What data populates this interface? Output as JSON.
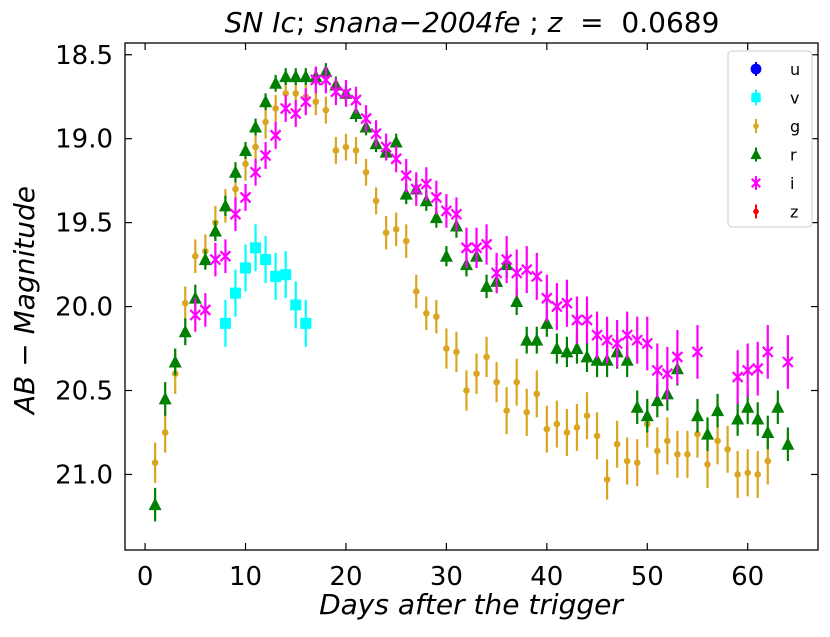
{
  "chart_data": {
    "type": "scatter",
    "title": "SN Ic; snana−2004fe ; z  =  0.0689",
    "title_parts": {
      "class": "SN Ic",
      "sep1": "; ",
      "name": "snana−2004fe",
      "sep2": " ; ",
      "zlabel": "z",
      "eq": "  =  ",
      "zvalue": "0.0689"
    },
    "xlabel": "Days after the trigger",
    "ylabel": "AB − Magnitude",
    "xlim": [
      -2,
      67
    ],
    "ylim": [
      21.45,
      18.43
    ],
    "y_inverted": true,
    "xticks": [
      0,
      10,
      20,
      30,
      40,
      50,
      60
    ],
    "xtick_labels": [
      "0",
      "10",
      "20",
      "30",
      "40",
      "50",
      "60"
    ],
    "yticks": [
      18.5,
      19.0,
      19.5,
      20.0,
      20.5,
      21.0
    ],
    "ytick_labels": [
      "18.5",
      "19.0",
      "19.5",
      "20.0",
      "20.5",
      "21.0"
    ],
    "legend_position": "top-right",
    "series": [
      {
        "name": "u",
        "color": "#0000ff",
        "marker": "circle",
        "x": [],
        "y": [],
        "err": []
      },
      {
        "name": "v",
        "color": "#00ffff",
        "marker": "square",
        "x": [
          8,
          9,
          10,
          11,
          12,
          13,
          14,
          15,
          16
        ],
        "y": [
          20.1,
          19.92,
          19.77,
          19.65,
          19.72,
          19.82,
          19.81,
          19.99,
          20.1
        ],
        "err": [
          0.14,
          0.14,
          0.14,
          0.14,
          0.14,
          0.14,
          0.14,
          0.14,
          0.14
        ]
      },
      {
        "name": "g",
        "color": "#daa520",
        "marker": "dot",
        "x": [
          1,
          2,
          3,
          4,
          5,
          6,
          7,
          8,
          9,
          10,
          11,
          12,
          13,
          14,
          15,
          16,
          17,
          18,
          19,
          20,
          21,
          22,
          23,
          24,
          25,
          26,
          27,
          28,
          29,
          30,
          31,
          32,
          33,
          34,
          35,
          36,
          37,
          38,
          39,
          40,
          41,
          42,
          43,
          44,
          45,
          46,
          47,
          48,
          49,
          50,
          51,
          52,
          53,
          54,
          55,
          56,
          57,
          58,
          59,
          60,
          61,
          62
        ],
        "y": [
          20.93,
          20.75,
          20.4,
          19.98,
          19.7,
          19.67,
          19.5,
          19.4,
          19.3,
          19.15,
          19.05,
          18.9,
          18.82,
          18.73,
          18.73,
          18.75,
          18.78,
          18.83,
          19.07,
          19.05,
          19.07,
          19.2,
          19.37,
          19.56,
          19.54,
          19.61,
          19.91,
          20.04,
          20.06,
          20.25,
          20.27,
          20.5,
          20.4,
          20.3,
          20.45,
          20.62,
          20.45,
          20.63,
          20.52,
          20.73,
          20.7,
          20.75,
          20.72,
          20.65,
          20.77,
          21.03,
          20.82,
          20.92,
          20.93,
          20.7,
          20.86,
          20.8,
          20.88,
          20.88,
          20.76,
          20.94,
          20.8,
          20.85,
          21.0,
          20.99,
          21.0,
          20.92
        ],
        "err": [
          0.12,
          0.12,
          0.12,
          0.1,
          0.1,
          0.1,
          0.1,
          0.1,
          0.1,
          0.1,
          0.1,
          0.1,
          0.08,
          0.08,
          0.08,
          0.08,
          0.08,
          0.08,
          0.08,
          0.08,
          0.08,
          0.08,
          0.08,
          0.1,
          0.1,
          0.1,
          0.1,
          0.1,
          0.1,
          0.12,
          0.12,
          0.12,
          0.12,
          0.12,
          0.12,
          0.14,
          0.14,
          0.14,
          0.14,
          0.14,
          0.14,
          0.14,
          0.14,
          0.14,
          0.14,
          0.12,
          0.14,
          0.14,
          0.14,
          0.14,
          0.14,
          0.14,
          0.14,
          0.14,
          0.14,
          0.14,
          0.14,
          0.14,
          0.14,
          0.14,
          0.14,
          0.14
        ]
      },
      {
        "name": "r",
        "color": "#008000",
        "marker": "triangle",
        "x": [
          1,
          2,
          3,
          4,
          5,
          6,
          7,
          8,
          9,
          10,
          11,
          12,
          13,
          14,
          15,
          16,
          17,
          18,
          19,
          20,
          21,
          22,
          23,
          24,
          25,
          26,
          27,
          28,
          29,
          30,
          31,
          32,
          33,
          34,
          35,
          36,
          37,
          38,
          39,
          40,
          41,
          42,
          43,
          44,
          45,
          46,
          47,
          48,
          49,
          50,
          51,
          52,
          53,
          55,
          56,
          57,
          59,
          60,
          61,
          62,
          63,
          64
        ],
        "y": [
          21.18,
          20.55,
          20.33,
          20.15,
          19.95,
          19.72,
          19.55,
          19.4,
          19.2,
          19.07,
          18.93,
          18.78,
          18.67,
          18.63,
          18.63,
          18.63,
          18.63,
          18.6,
          18.68,
          18.73,
          18.85,
          18.93,
          19.03,
          19.08,
          19.02,
          19.33,
          19.3,
          19.37,
          19.47,
          19.7,
          19.52,
          19.75,
          19.7,
          19.88,
          19.85,
          19.75,
          19.97,
          20.2,
          20.2,
          20.1,
          20.25,
          20.27,
          20.25,
          20.3,
          20.32,
          20.32,
          20.27,
          20.32,
          20.6,
          20.65,
          20.56,
          20.52,
          20.37,
          20.65,
          20.76,
          20.62,
          20.67,
          20.6,
          20.67,
          20.75,
          20.6,
          20.82
        ],
        "err": [
          0.1,
          0.1,
          0.08,
          0.08,
          0.08,
          0.06,
          0.06,
          0.06,
          0.06,
          0.05,
          0.05,
          0.05,
          0.05,
          0.05,
          0.05,
          0.05,
          0.05,
          0.05,
          0.05,
          0.05,
          0.05,
          0.05,
          0.05,
          0.05,
          0.05,
          0.06,
          0.06,
          0.06,
          0.06,
          0.06,
          0.07,
          0.07,
          0.07,
          0.07,
          0.07,
          0.08,
          0.08,
          0.08,
          0.08,
          0.08,
          0.09,
          0.09,
          0.09,
          0.09,
          0.1,
          0.1,
          0.1,
          0.1,
          0.1,
          0.1,
          0.1,
          0.1,
          0.1,
          0.1,
          0.1,
          0.1,
          0.1,
          0.1,
          0.1,
          0.1,
          0.1,
          0.1
        ]
      },
      {
        "name": "i",
        "color": "#ff00ff",
        "marker": "x",
        "x": [
          5,
          6,
          7,
          8,
          9,
          10,
          11,
          12,
          13,
          14,
          15,
          16,
          17,
          18,
          19,
          20,
          21,
          22,
          23,
          24,
          25,
          26,
          27,
          28,
          29,
          30,
          31,
          32,
          33,
          34,
          35,
          36,
          37,
          38,
          39,
          40,
          41,
          42,
          43,
          44,
          45,
          46,
          47,
          48,
          49,
          50,
          51,
          52,
          53,
          55,
          59,
          60,
          61,
          62,
          64
        ],
        "y": [
          20.05,
          20.02,
          19.72,
          19.7,
          19.45,
          19.35,
          19.2,
          19.1,
          18.98,
          18.82,
          18.85,
          18.78,
          18.65,
          18.65,
          18.72,
          18.73,
          18.77,
          18.88,
          18.97,
          19.05,
          19.12,
          19.22,
          19.3,
          19.27,
          19.35,
          19.43,
          19.45,
          19.65,
          19.65,
          19.63,
          19.8,
          19.72,
          19.8,
          19.78,
          19.82,
          19.95,
          20.0,
          19.98,
          20.08,
          20.08,
          20.17,
          20.2,
          20.22,
          20.17,
          20.2,
          20.22,
          20.38,
          20.4,
          20.3,
          20.27,
          20.42,
          20.38,
          20.37,
          20.27,
          20.33
        ],
        "err": [
          0.1,
          0.1,
          0.1,
          0.1,
          0.1,
          0.08,
          0.08,
          0.08,
          0.08,
          0.08,
          0.08,
          0.08,
          0.08,
          0.08,
          0.08,
          0.08,
          0.08,
          0.08,
          0.08,
          0.08,
          0.08,
          0.1,
          0.1,
          0.1,
          0.1,
          0.1,
          0.1,
          0.12,
          0.12,
          0.12,
          0.12,
          0.14,
          0.14,
          0.14,
          0.14,
          0.14,
          0.14,
          0.14,
          0.14,
          0.14,
          0.14,
          0.14,
          0.14,
          0.14,
          0.14,
          0.16,
          0.16,
          0.16,
          0.16,
          0.16,
          0.16,
          0.16,
          0.16,
          0.16,
          0.16
        ]
      },
      {
        "name": "z",
        "color": "#ff0000",
        "marker": "dot",
        "x": [],
        "y": [],
        "err": []
      }
    ]
  }
}
